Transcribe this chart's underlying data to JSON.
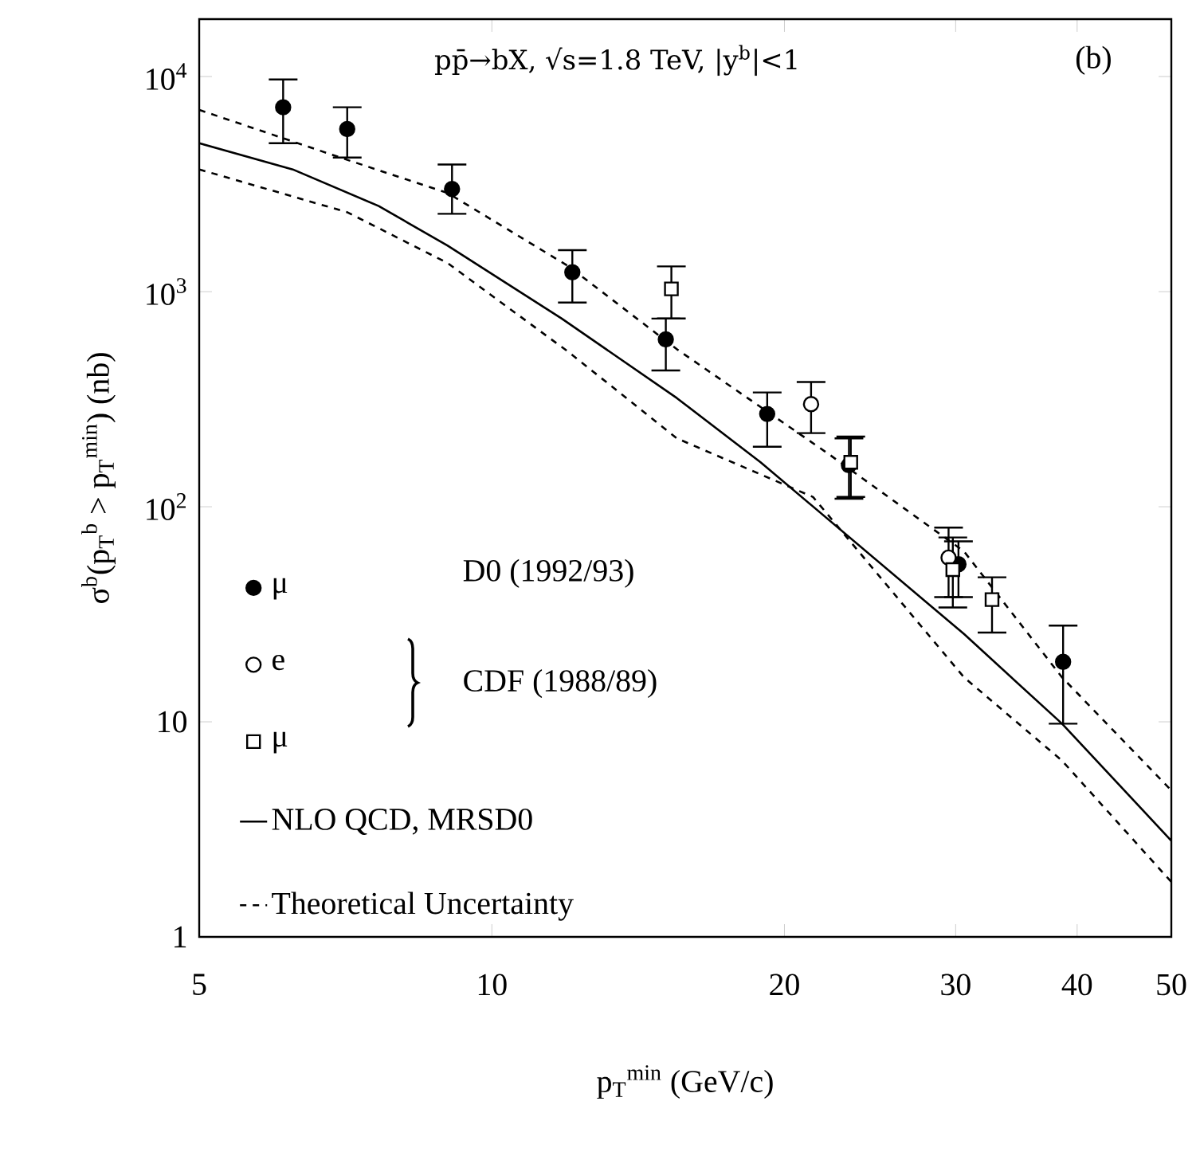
{
  "chart_data": {
    "type": "scatter",
    "xlabel": "p$_{T}$$^{min}$ (GeV/c)",
    "ylabel": "σ$^{b}$(p$_{T}$$^{b}$ > p$_{T}$$^{min}$) (nb)",
    "annotations": [
      "pp̄→bX, √s=1.8 TeV, |y$^{b}$|<1",
      "(b)",
      "D0 (1992/93)",
      "CDF (1988/89)"
    ],
    "log": "xy",
    "xlim": [
      5,
      50
    ],
    "ylim": [
      1,
      18500
    ],
    "xticks": [
      5,
      10,
      20,
      30,
      40,
      50
    ],
    "yticks": [
      1,
      10,
      {
        "value": 100,
        "label": "10$^{2}$"
      },
      {
        "value": 1000,
        "label": "10$^{3}$"
      },
      {
        "value": 10000,
        "label": "10$^{4}$"
      }
    ],
    "grid": false,
    "legend": "bottom left",
    "series": [
      {
        "name": "μ",
        "marker": "circle",
        "color": "#000000",
        "x": [
          6.1,
          7.1,
          9.1,
          12.1,
          15.1,
          19.2,
          23.3,
          30.2,
          38.7
        ],
        "values": [
          7200,
          5700,
          3000,
          1230,
          600,
          270,
          156,
          54,
          19
        ],
        "errors": [
          [
            4900,
            9700
          ],
          [
            4200,
            7200
          ],
          [
            2300,
            3900
          ],
          [
            890,
            1560
          ],
          [
            430,
            750
          ],
          [
            190,
            340
          ],
          [
            109,
            208
          ],
          [
            38,
            69
          ],
          [
            9.8,
            28
          ]
        ]
      },
      {
        "name": "e",
        "marker": "circle",
        "color": "#000000",
        "x": [
          21.3,
          29.5
        ],
        "values": [
          300,
          58
        ],
        "errors": [
          [
            220,
            380
          ],
          [
            38,
            80
          ]
        ]
      },
      {
        "name": "μ",
        "marker": "square",
        "color": "#000000",
        "x": [
          15.3,
          23.4,
          29.8,
          32.7
        ],
        "values": [
          1030,
          161,
          51,
          37
        ],
        "errors": [
          [
            750,
            1310
          ],
          [
            111,
            212
          ],
          [
            34,
            72
          ],
          [
            26,
            47
          ]
        ]
      },
      {
        "name": "NLO QCD, MRSD0",
        "type": "line",
        "marker": "none",
        "line_style": "solid",
        "color": "#000000",
        "x": [
          5,
          6.24,
          7.65,
          9,
          11.8,
          15.5,
          18.9,
          30.6,
          38.6,
          50
        ],
        "values": [
          4900,
          3700,
          2500,
          1640,
          750,
          320,
          161,
          25.6,
          9.8,
          2.8
        ]
      },
      {
        "name": "Theoretical Uncertainty",
        "type": "line",
        "marker": "none",
        "line_style": "dashed",
        "color": "#000000",
        "x": [
          5,
          7.1,
          9,
          12,
          15.5,
          22.2,
          30.6,
          38.6,
          50
        ],
        "values": [
          7000,
          4100,
          2880,
          1310,
          540,
          176,
          62,
          16.1,
          4.8
        ]
      },
      {
        "type": "line",
        "marker": "none",
        "line_style": "dashed",
        "color": "#000000",
        "x": [
          5,
          7.1,
          9,
          12,
          15.5,
          21.4,
          30.6,
          38.6,
          50
        ],
        "values": [
          3700,
          2340,
          1360,
          523,
          208,
          111,
          16.1,
          6.6,
          1.8
        ]
      }
    ]
  }
}
